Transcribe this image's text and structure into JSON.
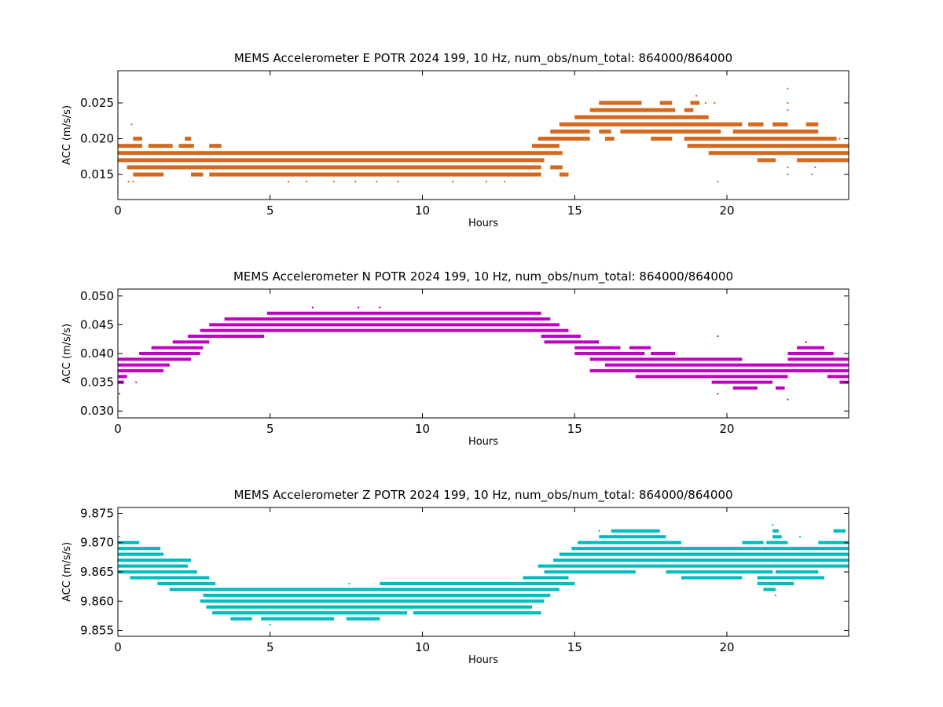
{
  "chart_data": [
    {
      "type": "scatter",
      "title": "MEMS Accelerometer E POTR 2024 199, 10 Hz, num_obs/num_total: 864000/864000",
      "xlabel": "Hours",
      "ylabel": "ACC (m/s/s)",
      "xlim": [
        0,
        24
      ],
      "ylim": [
        0.0115,
        0.0295
      ],
      "xticks": [
        "0",
        "5",
        "10",
        "15",
        "20"
      ],
      "yticks": [
        "0.015",
        "0.020",
        "0.025"
      ],
      "color": "#d2691e",
      "quantum": 0.001,
      "series": [
        {
          "y": 0.015,
          "segments": [
            [
              0.5,
              1.5
            ],
            [
              2.4,
              2.8
            ],
            [
              3.0,
              13.9
            ],
            [
              14.5,
              14.8
            ]
          ]
        },
        {
          "y": 0.016,
          "segments": [
            [
              0.3,
              13.9
            ],
            [
              14.2,
              14.6
            ]
          ]
        },
        {
          "y": 0.017,
          "segments": [
            [
              0.0,
              14.0
            ],
            [
              21.0,
              21.6
            ],
            [
              22.3,
              24.0
            ]
          ]
        },
        {
          "y": 0.018,
          "segments": [
            [
              0.0,
              14.0
            ],
            [
              14.0,
              14.6
            ],
            [
              19.4,
              24.0
            ]
          ]
        },
        {
          "y": 0.019,
          "segments": [
            [
              0.0,
              0.8
            ],
            [
              1.0,
              1.8
            ],
            [
              2.0,
              2.5
            ],
            [
              3.0,
              3.4
            ],
            [
              13.6,
              14.5
            ],
            [
              18.7,
              24.0
            ]
          ]
        },
        {
          "y": 0.02,
          "segments": [
            [
              0.5,
              0.8
            ],
            [
              2.2,
              2.4
            ],
            [
              13.8,
              15.5
            ],
            [
              16.0,
              16.3
            ],
            [
              17.5,
              18.2
            ],
            [
              18.6,
              23.6
            ]
          ]
        },
        {
          "y": 0.021,
          "segments": [
            [
              14.2,
              15.5
            ],
            [
              15.8,
              16.2
            ],
            [
              16.5,
              19.8
            ],
            [
              20.2,
              23.0
            ]
          ]
        },
        {
          "y": 0.022,
          "segments": [
            [
              14.5,
              20.5
            ],
            [
              20.7,
              21.2
            ],
            [
              21.5,
              22.0
            ],
            [
              22.6,
              23.0
            ]
          ]
        },
        {
          "y": 0.023,
          "segments": [
            [
              15.0,
              19.4
            ]
          ]
        },
        {
          "y": 0.024,
          "segments": [
            [
              15.5,
              18.3
            ],
            [
              18.6,
              18.9
            ]
          ]
        },
        {
          "y": 0.025,
          "segments": [
            [
              15.8,
              17.2
            ],
            [
              17.8,
              18.2
            ],
            [
              18.8,
              19.1
            ]
          ]
        }
      ],
      "outliers": [
        [
          0.35,
          0.014
        ],
        [
          0.5,
          0.014
        ],
        [
          0.45,
          0.022
        ],
        [
          5.6,
          0.014
        ],
        [
          6.2,
          0.014
        ],
        [
          7.1,
          0.014
        ],
        [
          7.8,
          0.014
        ],
        [
          8.5,
          0.014
        ],
        [
          9.2,
          0.014
        ],
        [
          11.0,
          0.014
        ],
        [
          12.1,
          0.014
        ],
        [
          12.7,
          0.014
        ],
        [
          19.7,
          0.014
        ],
        [
          19.0,
          0.026
        ],
        [
          19.3,
          0.025
        ],
        [
          19.6,
          0.025
        ],
        [
          22.0,
          0.027
        ],
        [
          22.0,
          0.025
        ],
        [
          22.0,
          0.024
        ],
        [
          22.0,
          0.016
        ],
        [
          22.0,
          0.015
        ],
        [
          22.8,
          0.015
        ],
        [
          22.9,
          0.016
        ],
        [
          23.7,
          0.02
        ]
      ]
    },
    {
      "type": "scatter",
      "title": "MEMS Accelerometer N POTR 2024 199, 10 Hz, num_obs/num_total: 864000/864000",
      "xlabel": "Hours",
      "ylabel": "ACC (m/s/s)",
      "xlim": [
        0,
        24
      ],
      "ylim": [
        0.0288,
        0.0512
      ],
      "xticks": [
        "0",
        "5",
        "10",
        "15",
        "20"
      ],
      "yticks": [
        "0.030",
        "0.035",
        "0.040",
        "0.045",
        "0.050"
      ],
      "color": "#c000c0",
      "quantum": 0.001,
      "series": [
        {
          "y": 0.034,
          "segments": [
            [
              20.2,
              21.0
            ],
            [
              21.6,
              21.9
            ]
          ]
        },
        {
          "y": 0.035,
          "segments": [
            [
              0.0,
              0.2
            ],
            [
              19.5,
              21.5
            ],
            [
              23.7,
              24.0
            ]
          ]
        },
        {
          "y": 0.036,
          "segments": [
            [
              0.0,
              0.3
            ],
            [
              17.0,
              22.0
            ],
            [
              23.3,
              24.0
            ]
          ]
        },
        {
          "y": 0.037,
          "segments": [
            [
              0.0,
              1.5
            ],
            [
              15.5,
              24.0
            ]
          ]
        },
        {
          "y": 0.038,
          "segments": [
            [
              0.0,
              1.7
            ],
            [
              16.0,
              24.0
            ]
          ]
        },
        {
          "y": 0.039,
          "segments": [
            [
              0.0,
              2.4
            ],
            [
              15.5,
              20.5
            ],
            [
              22.0,
              24.0
            ]
          ]
        },
        {
          "y": 0.04,
          "segments": [
            [
              0.7,
              2.7
            ],
            [
              15.0,
              17.3
            ],
            [
              17.5,
              18.3
            ],
            [
              22.0,
              23.5
            ]
          ]
        },
        {
          "y": 0.041,
          "segments": [
            [
              1.1,
              2.8
            ],
            [
              15.0,
              16.5
            ],
            [
              16.8,
              17.5
            ],
            [
              22.3,
              23.2
            ]
          ]
        },
        {
          "y": 0.042,
          "segments": [
            [
              1.8,
              3.0
            ],
            [
              14.0,
              15.8
            ]
          ]
        },
        {
          "y": 0.043,
          "segments": [
            [
              2.3,
              4.8
            ],
            [
              13.9,
              15.2
            ]
          ]
        },
        {
          "y": 0.044,
          "segments": [
            [
              2.7,
              14.8
            ]
          ]
        },
        {
          "y": 0.045,
          "segments": [
            [
              3.0,
              14.5
            ]
          ]
        },
        {
          "y": 0.046,
          "segments": [
            [
              3.5,
              14.2
            ]
          ]
        },
        {
          "y": 0.047,
          "segments": [
            [
              4.9,
              13.9
            ]
          ]
        }
      ],
      "outliers": [
        [
          0.05,
          0.033
        ],
        [
          6.4,
          0.048
        ],
        [
          7.9,
          0.048
        ],
        [
          8.6,
          0.048
        ],
        [
          19.7,
          0.043
        ],
        [
          19.7,
          0.033
        ],
        [
          22.0,
          0.032
        ],
        [
          22.6,
          0.042
        ],
        [
          0.6,
          0.035
        ]
      ]
    },
    {
      "type": "scatter",
      "title": "MEMS Accelerometer Z POTR 2024 199, 10 Hz, num_obs/num_total: 864000/864000",
      "xlabel": "Hours",
      "ylabel": "ACC (m/s/s)",
      "xlim": [
        0,
        24
      ],
      "ylim": [
        9.854,
        9.876
      ],
      "xticks": [
        "0",
        "5",
        "10",
        "15",
        "20"
      ],
      "yticks": [
        "9.855",
        "9.860",
        "9.865",
        "9.870",
        "9.875"
      ],
      "color": "#00bcbc",
      "quantum": 0.001,
      "series": [
        {
          "y": 9.857,
          "segments": [
            [
              3.7,
              4.4
            ],
            [
              4.7,
              7.1
            ],
            [
              7.5,
              8.6
            ]
          ]
        },
        {
          "y": 9.858,
          "segments": [
            [
              3.1,
              9.5
            ],
            [
              9.7,
              13.9
            ]
          ]
        },
        {
          "y": 9.859,
          "segments": [
            [
              2.9,
              13.6
            ]
          ]
        },
        {
          "y": 9.86,
          "segments": [
            [
              2.7,
              14.0
            ]
          ]
        },
        {
          "y": 9.861,
          "segments": [
            [
              2.8,
              14.2
            ]
          ]
        },
        {
          "y": 9.862,
          "segments": [
            [
              1.7,
              14.5
            ],
            [
              21.2,
              21.6
            ]
          ]
        },
        {
          "y": 9.863,
          "segments": [
            [
              1.3,
              3.2
            ],
            [
              8.6,
              15.0
            ],
            [
              21.0,
              22.2
            ]
          ]
        },
        {
          "y": 9.864,
          "segments": [
            [
              0.4,
              3.0
            ],
            [
              13.3,
              14.8
            ],
            [
              18.5,
              20.5
            ],
            [
              21.0,
              23.2
            ]
          ]
        },
        {
          "y": 9.865,
          "segments": [
            [
              0.0,
              2.6
            ],
            [
              14.0,
              17.0
            ],
            [
              18.0,
              21.5
            ],
            [
              21.6,
              23.0
            ]
          ]
        },
        {
          "y": 9.866,
          "segments": [
            [
              0.0,
              2.3
            ],
            [
              13.8,
              24.0
            ]
          ]
        },
        {
          "y": 9.867,
          "segments": [
            [
              0.0,
              2.4
            ],
            [
              14.3,
              24.0
            ]
          ]
        },
        {
          "y": 9.868,
          "segments": [
            [
              0.0,
              1.5
            ],
            [
              14.5,
              24.0
            ]
          ]
        },
        {
          "y": 9.869,
          "segments": [
            [
              0.0,
              1.4
            ],
            [
              14.9,
              24.0
            ]
          ]
        },
        {
          "y": 9.87,
          "segments": [
            [
              0.0,
              0.7
            ],
            [
              15.1,
              18.5
            ],
            [
              20.5,
              21.2
            ],
            [
              21.3,
              22.0
            ],
            [
              23.0,
              24.0
            ]
          ]
        },
        {
          "y": 9.871,
          "segments": [
            [
              15.8,
              18.0
            ],
            [
              21.5,
              21.8
            ]
          ]
        },
        {
          "y": 9.872,
          "segments": [
            [
              16.2,
              17.8
            ],
            [
              21.5,
              21.7
            ],
            [
              23.5,
              23.9
            ]
          ]
        }
      ],
      "outliers": [
        [
          0.05,
          9.871
        ],
        [
          5.0,
          9.856
        ],
        [
          7.6,
          9.863
        ],
        [
          9.2,
          9.863
        ],
        [
          21.5,
          9.873
        ],
        [
          21.6,
          9.861
        ],
        [
          22.0,
          9.865
        ],
        [
          15.8,
          9.872
        ],
        [
          22.4,
          9.871
        ]
      ]
    }
  ]
}
